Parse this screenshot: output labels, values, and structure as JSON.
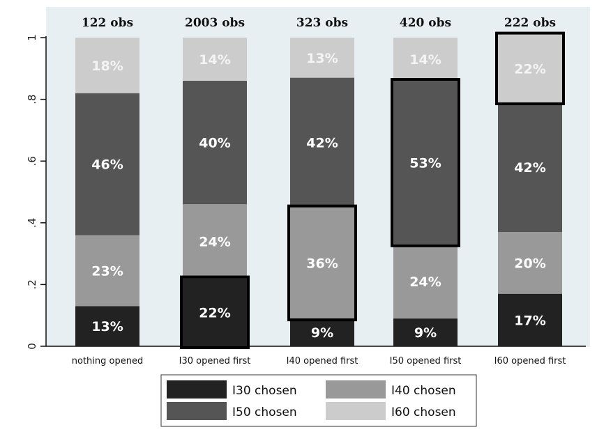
{
  "chart_data": {
    "type": "bar",
    "stacked": true,
    "orientation": "vertical",
    "categories": [
      "nothing opened",
      "I30 opened first",
      "I40 opened first",
      "I50 opened first",
      "I60 opened first"
    ],
    "observations": [
      "122 obs",
      "2003 obs",
      "323 obs",
      "420 obs",
      "222 obs"
    ],
    "series": [
      {
        "name": "I30 chosen",
        "color": "#222222",
        "values": [
          0.13,
          0.22,
          0.09,
          0.09,
          0.17
        ],
        "labels": [
          "13%",
          "22%",
          "9%",
          "9%",
          "17%"
        ]
      },
      {
        "name": "I40 chosen",
        "color": "#999999",
        "values": [
          0.23,
          0.24,
          0.36,
          0.24,
          0.2
        ],
        "labels": [
          "23%",
          "24%",
          "36%",
          "24%",
          "20%"
        ]
      },
      {
        "name": "I50 chosen",
        "color": "#555555",
        "values": [
          0.46,
          0.4,
          0.42,
          0.53,
          0.42
        ],
        "labels": [
          "46%",
          "40%",
          "42%",
          "53%",
          "42%"
        ]
      },
      {
        "name": "I60 chosen",
        "color": "#cccccc",
        "values": [
          0.18,
          0.14,
          0.13,
          0.14,
          0.22
        ],
        "labels": [
          "18%",
          "14%",
          "13%",
          "14%",
          "22%"
        ]
      }
    ],
    "highlighted": [
      {
        "category": "I30 opened first",
        "series": "I30 chosen"
      },
      {
        "category": "I40 opened first",
        "series": "I40 chosen"
      },
      {
        "category": "I50 opened first",
        "series": "I50 chosen"
      },
      {
        "category": "I60 opened first",
        "series": "I60 chosen"
      }
    ],
    "yticks": [
      "0",
      ".2",
      ".4",
      ".6",
      ".8",
      "1"
    ],
    "ytick_values": [
      0,
      0.2,
      0.4,
      0.6,
      0.8,
      1
    ],
    "ylim": [
      0,
      1
    ],
    "xlabel": "",
    "ylabel": "",
    "legend_position": "bottom",
    "grid": false,
    "plot_background": "#e8eff3"
  }
}
